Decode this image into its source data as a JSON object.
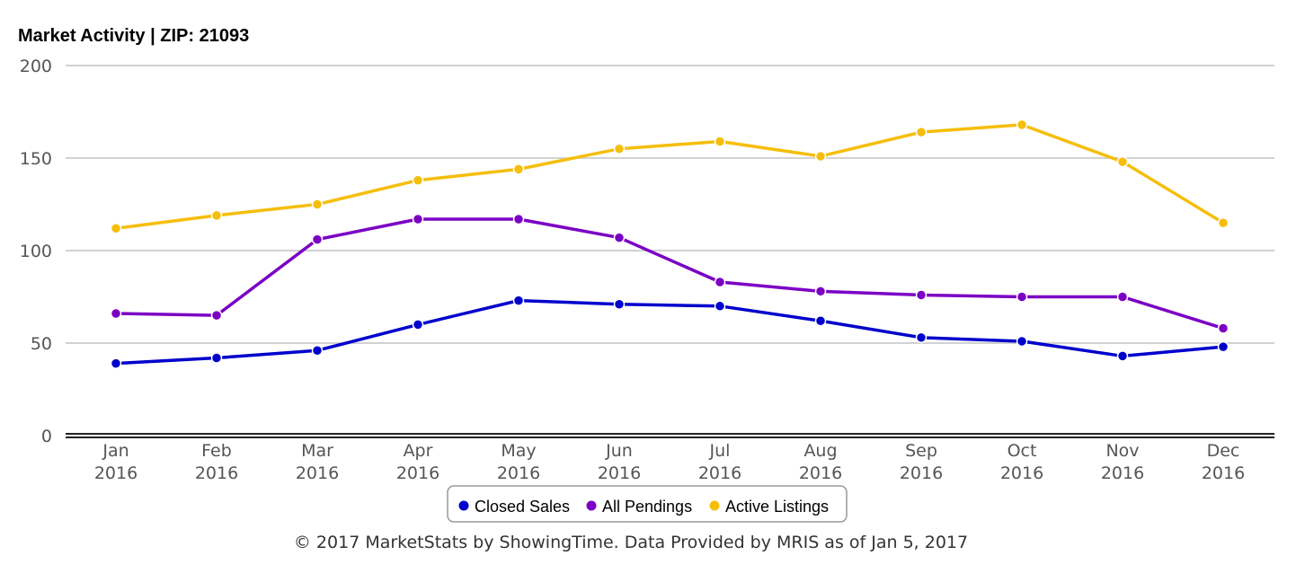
{
  "chart_data": {
    "type": "line",
    "title": "Market Activity | ZIP: 21093",
    "categories": [
      [
        "Jan",
        "2016"
      ],
      [
        "Feb",
        "2016"
      ],
      [
        "Mar",
        "2016"
      ],
      [
        "Apr",
        "2016"
      ],
      [
        "May",
        "2016"
      ],
      [
        "Jun",
        "2016"
      ],
      [
        "Jul",
        "2016"
      ],
      [
        "Aug",
        "2016"
      ],
      [
        "Sep",
        "2016"
      ],
      [
        "Oct",
        "2016"
      ],
      [
        "Nov",
        "2016"
      ],
      [
        "Dec",
        "2016"
      ]
    ],
    "yticks": [
      "200",
      "150",
      "100",
      "50",
      "0"
    ],
    "ytick_values": [
      200,
      150,
      100,
      50,
      0
    ],
    "ylim": [
      0,
      200
    ],
    "grid": true,
    "legend_position": "bottom-center",
    "series": [
      {
        "name": "Closed Sales",
        "color": "#0000cc",
        "values": [
          39,
          42,
          46,
          60,
          73,
          71,
          70,
          62,
          53,
          51,
          43,
          48
        ]
      },
      {
        "name": "All Pendings",
        "color": "#7b00c4",
        "values": [
          66,
          65,
          106,
          117,
          117,
          107,
          83,
          78,
          76,
          75,
          75,
          58
        ]
      },
      {
        "name": "Active Listings",
        "color": "#f5be0b",
        "values": [
          112,
          119,
          125,
          138,
          144,
          155,
          159,
          151,
          164,
          168,
          148,
          115
        ]
      }
    ]
  },
  "footer": "© 2017 MarketStats by ShowingTime. Data Provided by MRIS as of Jan 5, 2017"
}
